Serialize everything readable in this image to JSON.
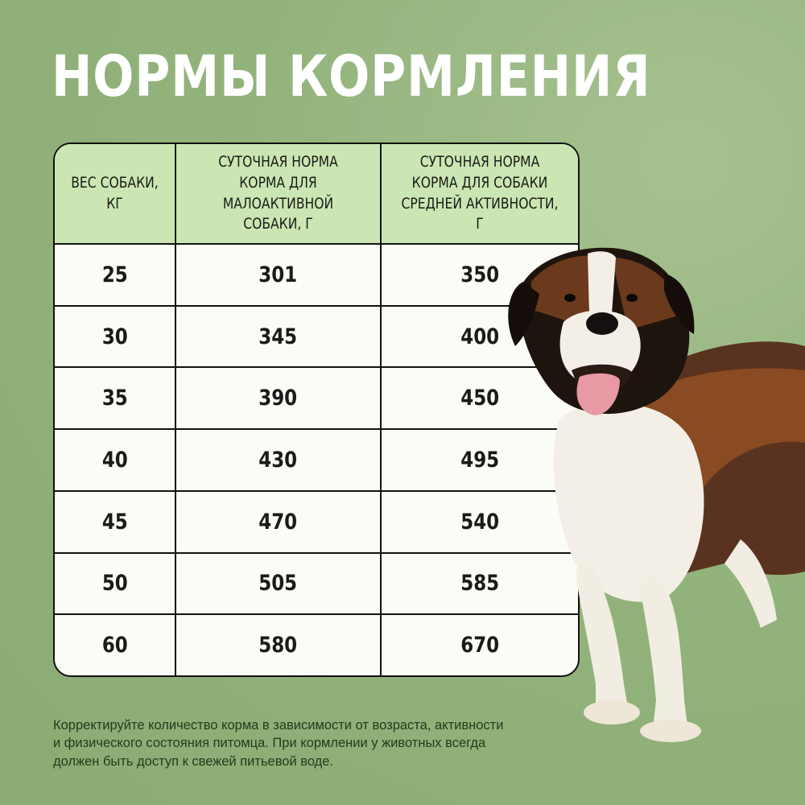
{
  "title": "НОРМЫ КОРМЛЕНИЯ",
  "table": {
    "headers": [
      "ВЕС СОБАКИ, КГ",
      "СУТОЧНАЯ НОРМА КОРМА ДЛЯ МАЛОАКТИВНОЙ СОБАКИ, Г",
      "СУТОЧНАЯ НОРМА КОРМА ДЛЯ СОБАКИ СРЕДНЕЙ АКТИВНОСТИ, Г"
    ],
    "rows": [
      [
        "25",
        "301",
        "350"
      ],
      [
        "30",
        "345",
        "400"
      ],
      [
        "35",
        "390",
        "450"
      ],
      [
        "40",
        "430",
        "495"
      ],
      [
        "45",
        "470",
        "540"
      ],
      [
        "50",
        "505",
        "585"
      ],
      [
        "60",
        "580",
        "670"
      ]
    ]
  },
  "note": "Корректируйте количество корма в зависимости от возраста, активности и физического состояния питомца. При кормлении у животных всегда должен быть доступ к свежей питьевой воде.",
  "image": {
    "subject": "dog-photo"
  },
  "colors": {
    "background": "#93b37c",
    "header_fill": "#cbe6b2",
    "cell_fill": "#fbfcf5",
    "title": "#ffffff"
  }
}
